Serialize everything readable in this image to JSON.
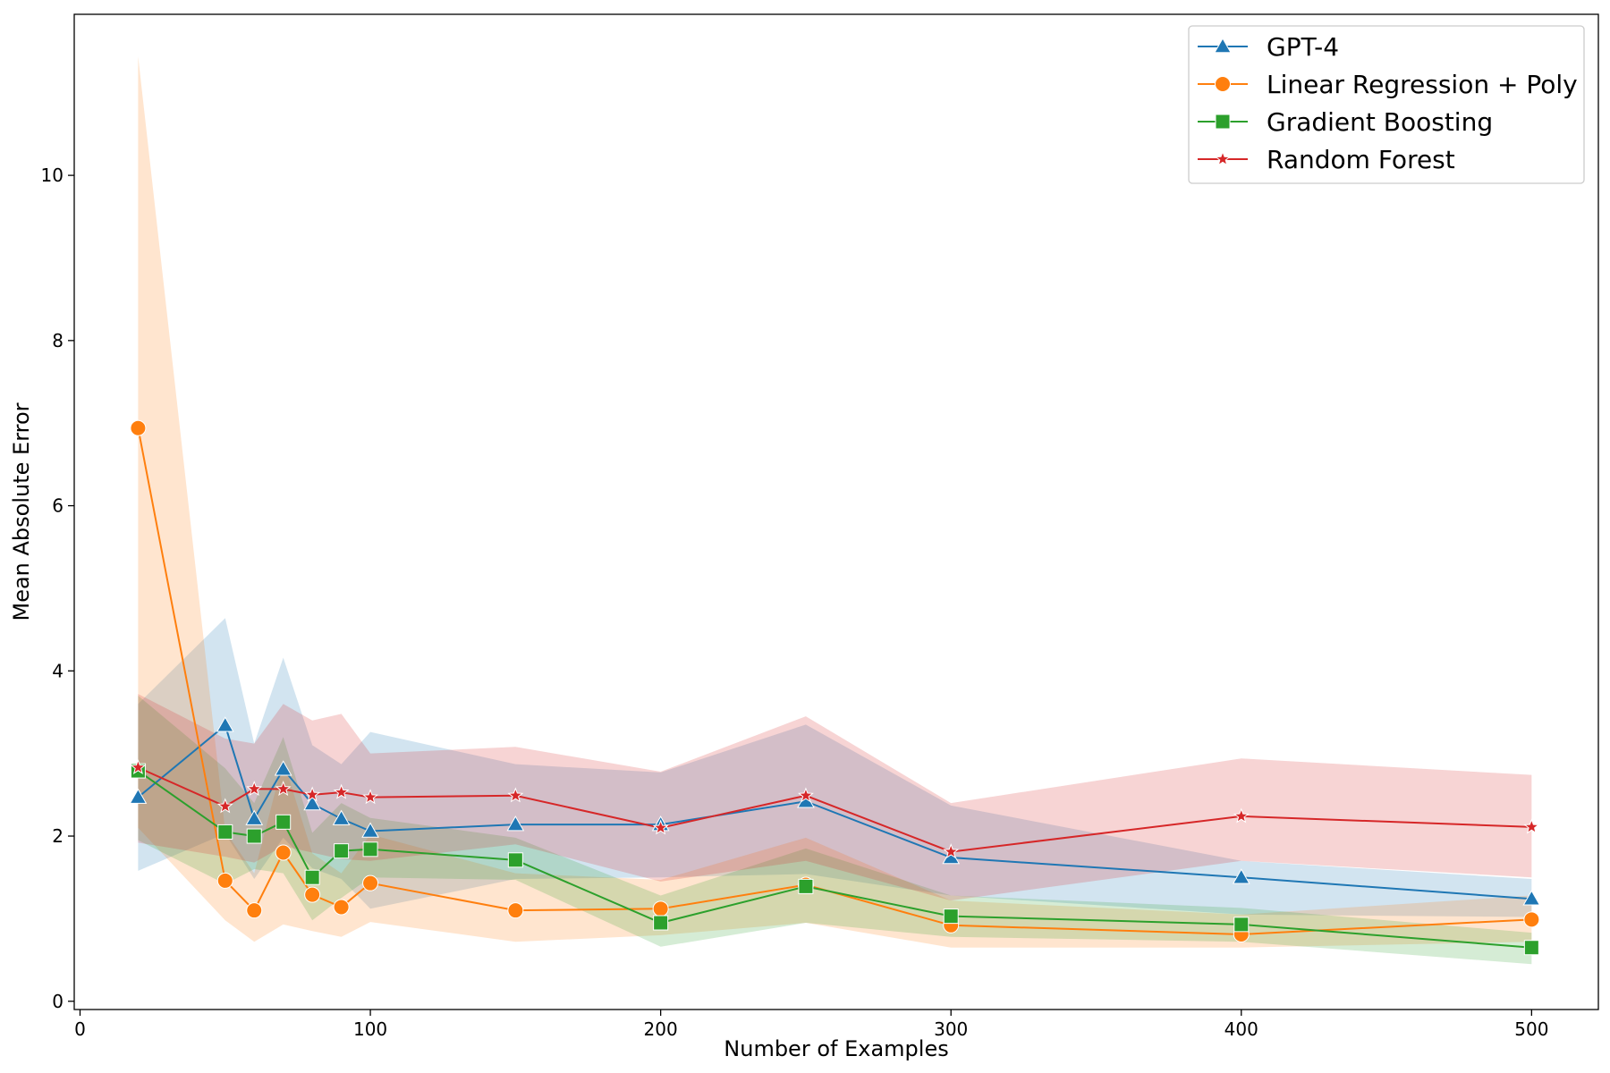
{
  "chart_data": {
    "type": "line",
    "title": "",
    "xlabel": "Number of Examples",
    "ylabel": "Mean Absolute Error",
    "xlim": [
      -2,
      523
    ],
    "ylim": [
      -0.1,
      11.95
    ],
    "xticks": [
      0,
      100,
      200,
      300,
      400,
      500
    ],
    "yticks": [
      0,
      2,
      4,
      6,
      8,
      10
    ],
    "grid": false,
    "legend_position": "top-right",
    "x": [
      20,
      50,
      60,
      70,
      80,
      90,
      100,
      150,
      200,
      250,
      300,
      400,
      500
    ],
    "series": [
      {
        "name": "GPT-4",
        "color": "#1f77b4",
        "marker": "triangle",
        "values": [
          2.47,
          3.34,
          2.21,
          2.81,
          2.39,
          2.21,
          2.06,
          2.14,
          2.14,
          2.42,
          1.74,
          1.5,
          1.24
        ],
        "band_lower": [
          1.58,
          2.03,
          1.48,
          1.98,
          1.61,
          1.48,
          1.12,
          1.48,
          1.5,
          1.54,
          1.28,
          1.05,
          1.02
        ],
        "band_upper": [
          3.6,
          4.64,
          3.12,
          4.16,
          3.1,
          2.87,
          3.26,
          2.87,
          2.77,
          3.35,
          2.37,
          1.7,
          1.48
        ]
      },
      {
        "name": "Linear Regression + Poly",
        "color": "#ff7f0e",
        "marker": "circle",
        "values": [
          6.94,
          1.46,
          1.1,
          1.8,
          1.29,
          1.14,
          1.43,
          1.1,
          1.12,
          1.41,
          0.92,
          0.81,
          0.99
        ],
        "band_lower": [
          2.1,
          0.98,
          0.72,
          0.93,
          0.85,
          0.78,
          0.96,
          0.72,
          0.8,
          0.95,
          0.65,
          0.65,
          0.72
        ],
        "band_upper": [
          11.44,
          2.06,
          1.55,
          2.92,
          1.79,
          1.55,
          2.02,
          1.55,
          1.47,
          1.98,
          1.22,
          1.05,
          1.28
        ]
      },
      {
        "name": "Gradient Boosting",
        "color": "#2ca02c",
        "marker": "square",
        "values": [
          2.79,
          2.05,
          2.0,
          2.17,
          1.5,
          1.82,
          1.84,
          1.71,
          0.95,
          1.39,
          1.03,
          0.93,
          0.65
        ],
        "band_lower": [
          1.95,
          1.42,
          1.6,
          1.55,
          0.98,
          1.25,
          1.5,
          1.47,
          0.66,
          0.95,
          0.78,
          0.72,
          0.45
        ],
        "band_upper": [
          3.7,
          2.82,
          2.4,
          3.2,
          2.04,
          2.4,
          2.22,
          1.98,
          1.28,
          1.85,
          1.28,
          1.13,
          0.83
        ]
      },
      {
        "name": "Random Forest",
        "color": "#d62728",
        "marker": "star",
        "values": [
          2.83,
          2.36,
          2.57,
          2.57,
          2.5,
          2.53,
          2.47,
          2.49,
          2.1,
          2.49,
          1.81,
          2.24,
          2.11
        ],
        "band_lower": [
          1.92,
          1.75,
          1.68,
          1.88,
          1.8,
          1.72,
          1.7,
          1.9,
          1.45,
          1.7,
          1.22,
          1.7,
          1.5
        ],
        "band_upper": [
          3.72,
          3.18,
          3.12,
          3.6,
          3.4,
          3.48,
          3.0,
          3.08,
          2.78,
          3.45,
          2.4,
          2.94,
          2.74
        ]
      }
    ]
  }
}
